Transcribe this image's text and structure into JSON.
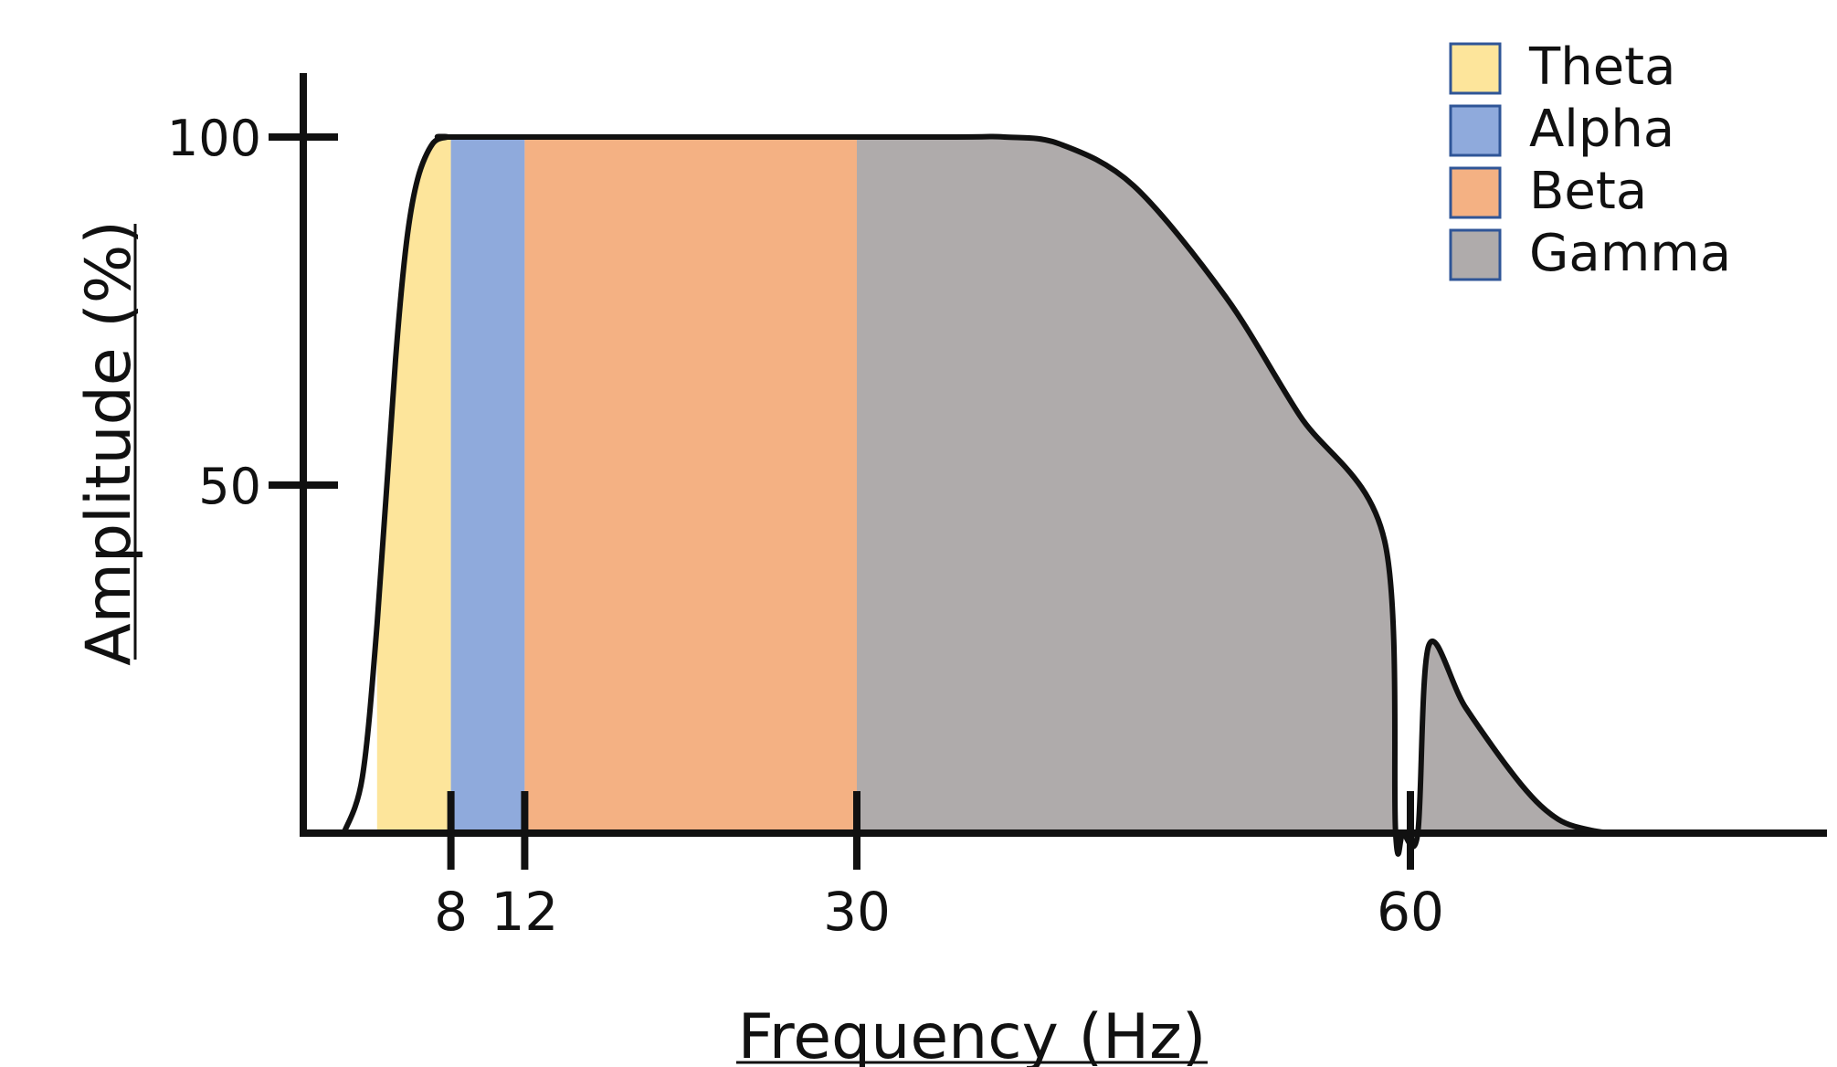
{
  "chart_data": {
    "type": "area",
    "xlabel": "Frequency (Hz)",
    "ylabel": "Amplitude (%)",
    "ylim": [
      0,
      100
    ],
    "y_ticks": [
      {
        "value": 50,
        "label": "50"
      },
      {
        "value": 100,
        "label": "100"
      }
    ],
    "x_ticks": [
      {
        "value": 8,
        "label": "8"
      },
      {
        "value": 12,
        "label": "12"
      },
      {
        "value": 30,
        "label": "30"
      },
      {
        "value": 60,
        "label": "60"
      }
    ],
    "bands": [
      {
        "name": "Theta",
        "from": 4,
        "to": 8,
        "color": "#FDE59B"
      },
      {
        "name": "Alpha",
        "from": 8,
        "to": 12,
        "color": "#8FAADC"
      },
      {
        "name": "Beta",
        "from": 12,
        "to": 30,
        "color": "#F4B183"
      },
      {
        "name": "Gamma",
        "from": 30,
        "to": 70,
        "color": "#AFABAB"
      }
    ],
    "curve": {
      "x": [
        2.2,
        3.2,
        4.0,
        5.0,
        5.6,
        6.2,
        7.0,
        7.8,
        8.2,
        20,
        35,
        38,
        41,
        45,
        50,
        54,
        58.6,
        59.2,
        59.6,
        60.4,
        61.0,
        63,
        66,
        68,
        70,
        71.5
      ],
      "y": [
        0,
        8,
        30,
        68,
        85,
        94,
        99,
        100,
        100,
        100,
        100,
        100,
        99,
        93,
        77,
        60,
        42,
        0,
        0,
        0,
        27,
        18,
        7,
        2,
        0.3,
        0
      ],
      "color": "#111111"
    },
    "legend": {
      "position": "top-right",
      "items": [
        {
          "label": "Theta",
          "color": "#FDE59B"
        },
        {
          "label": "Alpha",
          "color": "#8FAADC"
        },
        {
          "label": "Beta",
          "color": "#F4B183"
        },
        {
          "label": "Gamma",
          "color": "#AFABAB"
        }
      ]
    }
  }
}
